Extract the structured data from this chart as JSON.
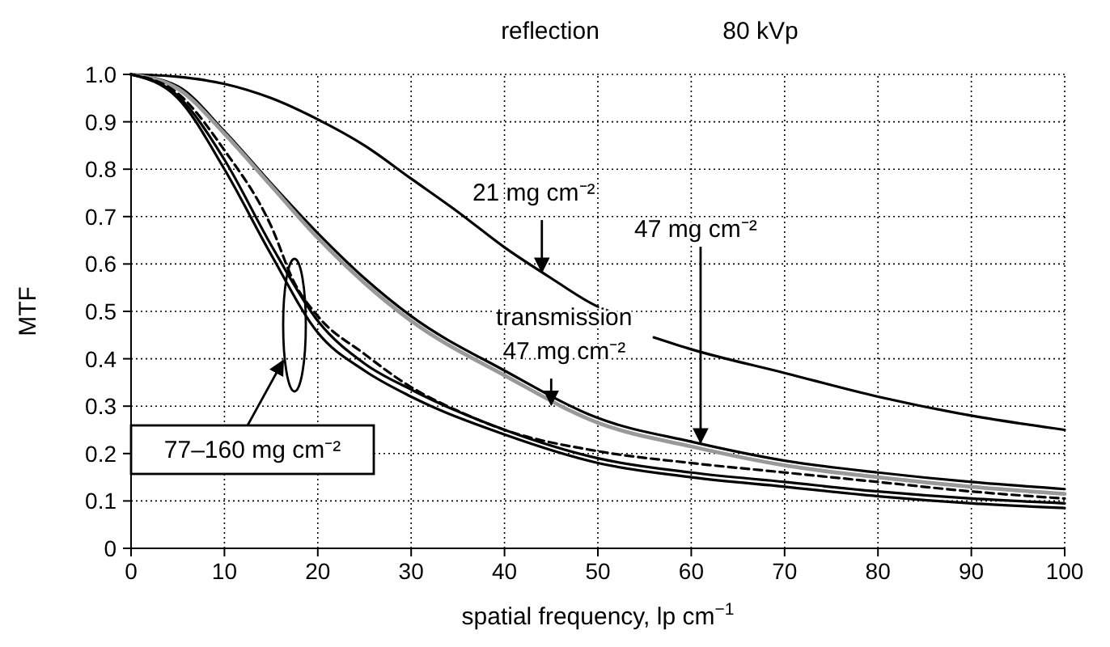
{
  "chart_data": {
    "type": "line",
    "xlabel": "spatial frequency, lp cm$^{−1}$",
    "ylabel": "MTF",
    "xlim": [
      0,
      100
    ],
    "ylim": [
      0,
      1
    ],
    "xticks": [
      0,
      10,
      20,
      30,
      40,
      50,
      60,
      70,
      80,
      90,
      100
    ],
    "yticks": [
      {
        "value": 0,
        "label": "0"
      },
      {
        "value": 0.1,
        "label": "0.1"
      },
      {
        "value": 0.2,
        "label": "0.2"
      },
      {
        "value": 0.3,
        "label": "0.3"
      },
      {
        "value": 0.4,
        "label": "0.4"
      },
      {
        "value": 0.5,
        "label": "0.5"
      },
      {
        "value": 0.6,
        "label": "0.6"
      },
      {
        "value": 0.7,
        "label": "0.7"
      },
      {
        "value": 0.8,
        "label": "0.8"
      },
      {
        "value": 0.9,
        "label": "0.9"
      },
      {
        "value": 1,
        "label": "1.0"
      }
    ],
    "grid": true,
    "marker": "none",
    "series": [
      {
        "color": "#000000",
        "x": [
          0,
          5,
          10,
          15,
          20,
          25,
          30,
          35,
          40,
          45,
          50,
          52,
          54,
          56,
          60,
          70,
          80,
          90,
          100
        ],
        "values": [
          1,
          0.995,
          0.98,
          0.95,
          0.905,
          0.85,
          0.78,
          0.71,
          0.635,
          0.57,
          0.51,
          0.495,
          null,
          0.445,
          0.42,
          0.37,
          0.32,
          0.28,
          0.25
        ]
      },
      {
        "color": "#000000",
        "x": [
          0,
          5,
          10,
          15,
          20,
          25,
          30,
          40,
          50,
          60,
          70,
          80,
          90,
          100
        ],
        "values": [
          1,
          0.975,
          0.88,
          0.77,
          0.665,
          0.57,
          0.49,
          0.375,
          0.275,
          0.225,
          0.185,
          0.16,
          0.14,
          0.125
        ]
      },
      {
        "color": "#999999",
        "x": [
          0,
          5,
          10,
          15,
          20,
          25,
          30,
          40,
          50,
          60,
          70,
          80,
          90,
          100
        ],
        "values": [
          1,
          0.97,
          0.875,
          0.765,
          0.655,
          0.56,
          0.48,
          0.365,
          0.265,
          0.215,
          0.175,
          0.15,
          0.13,
          0.115
        ]
      },
      {
        "color": "#000000",
        "line_style": "dashed",
        "x": [
          0,
          5,
          10,
          15,
          17.5,
          20,
          25,
          30,
          35,
          40,
          50,
          60,
          70,
          80,
          90,
          100
        ],
        "values": [
          1,
          0.96,
          0.84,
          0.68,
          0.56,
          0.49,
          0.41,
          0.34,
          0.29,
          0.25,
          0.205,
          0.18,
          0.16,
          0.14,
          0.12,
          0.105
        ]
      },
      {
        "color": "#000000",
        "x": [
          0,
          5,
          10,
          15,
          20,
          25,
          30,
          40,
          50,
          60,
          70,
          80,
          90,
          100
        ],
        "values": [
          1,
          0.95,
          0.8,
          0.62,
          0.455,
          0.375,
          0.32,
          0.24,
          0.18,
          0.15,
          0.13,
          0.11,
          0.095,
          0.085
        ]
      },
      {
        "color": "#000000",
        "x": [
          0,
          5,
          10,
          15,
          20,
          25,
          30,
          40,
          50,
          60,
          70,
          80,
          90,
          100
        ],
        "values": [
          1,
          0.955,
          0.82,
          0.64,
          0.48,
          0.39,
          0.335,
          0.25,
          0.19,
          0.16,
          0.14,
          0.12,
          0.105,
          0.095
        ]
      }
    ],
    "annotations": [
      "reflection",
      "80 kVp",
      {
        "text": "47 mg cm⁻²",
        "x": 61,
        "y": 0.22
      },
      "77–160 mg cm⁻²",
      {
        "text": "21 mg cm⁻²",
        "x": 44,
        "y": 0.58
      },
      {
        "text": "transmission\n47 mg cm⁻²",
        "x": 45,
        "y": 0.3
      }
    ]
  }
}
